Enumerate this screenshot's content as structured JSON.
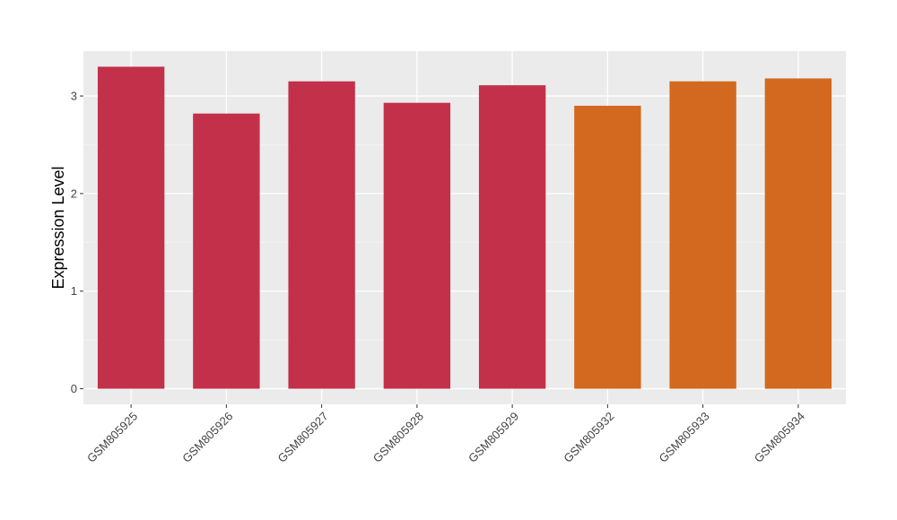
{
  "chart_data": {
    "type": "bar",
    "categories": [
      "GSM805925",
      "GSM805926",
      "GSM805927",
      "GSM805928",
      "GSM805929",
      "GSM805932",
      "GSM805933",
      "GSM805934"
    ],
    "values": [
      3.3,
      2.82,
      3.15,
      2.93,
      3.11,
      2.9,
      3.15,
      3.18
    ],
    "bar_colors": [
      "#c3304a",
      "#c3304a",
      "#c3304a",
      "#c3304a",
      "#c3304a",
      "#d2691e",
      "#d2691e",
      "#d2691e"
    ],
    "title": "",
    "xlabel": "",
    "ylabel": "Expression Level",
    "ylim": [
      -0.16,
      3.46
    ],
    "yticks": [
      0,
      1,
      2,
      3
    ],
    "grid": true,
    "panel_background": "#ebebeb",
    "legend": "none"
  }
}
